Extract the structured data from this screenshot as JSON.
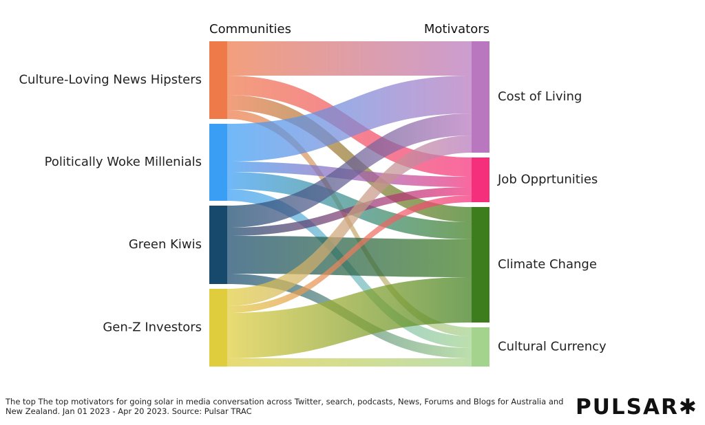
{
  "chart_data": {
    "type": "sankey",
    "source_header": "Communities",
    "target_header": "Motivators",
    "sources": [
      {
        "name": "Culture-Loving News Hipsters",
        "color": "#ee7a4a"
      },
      {
        "name": "Politically Woke Millenials",
        "color": "#3a9ef5"
      },
      {
        "name": "Green Kiwis",
        "color": "#17496c"
      },
      {
        "name": "Gen-Z Investors",
        "color": "#e0cd3e"
      }
    ],
    "targets": [
      {
        "name": "Cost of Living",
        "color": "#b877be"
      },
      {
        "name": "Job Opprtunities",
        "color": "#f52f7b"
      },
      {
        "name": "Climate Change",
        "color": "#3d7d1d"
      },
      {
        "name": "Cultural Currency",
        "color": "#a4d38e"
      }
    ],
    "links": [
      {
        "source": 0,
        "target": 0,
        "value": 50
      },
      {
        "source": 0,
        "target": 1,
        "value": 28
      },
      {
        "source": 0,
        "target": 2,
        "value": 22
      },
      {
        "source": 0,
        "target": 3,
        "value": 13
      },
      {
        "source": 1,
        "target": 0,
        "value": 55
      },
      {
        "source": 1,
        "target": 1,
        "value": 15
      },
      {
        "source": 1,
        "target": 2,
        "value": 25
      },
      {
        "source": 1,
        "target": 3,
        "value": 17
      },
      {
        "source": 2,
        "target": 0,
        "value": 32
      },
      {
        "source": 2,
        "target": 1,
        "value": 12
      },
      {
        "source": 2,
        "target": 2,
        "value": 55
      },
      {
        "source": 2,
        "target": 3,
        "value": 15
      },
      {
        "source": 3,
        "target": 0,
        "value": 25
      },
      {
        "source": 3,
        "target": 1,
        "value": 10
      },
      {
        "source": 3,
        "target": 2,
        "value": 66
      },
      {
        "source": 3,
        "target": 3,
        "value": 12
      }
    ]
  },
  "footer": "The top The top motivators for going solar in media conversation across Twitter, search, podcasts, News, Forums and Blogs for Australia and New Zealand. Jan 01 2023 - Apr 20 2023. Source: Pulsar TRAC",
  "logo": "PULSAR✱"
}
